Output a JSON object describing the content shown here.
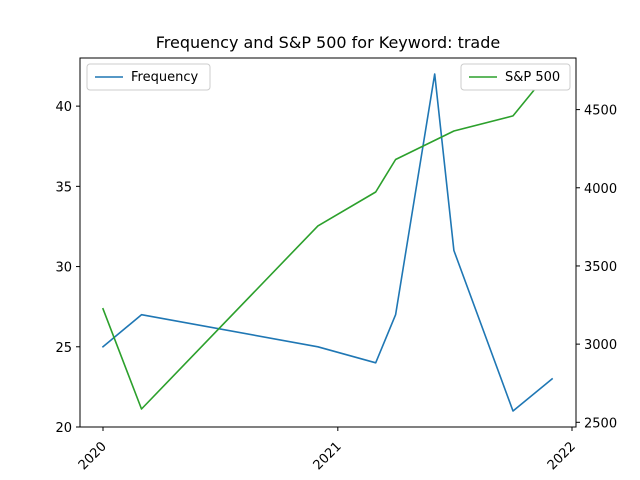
{
  "chart_data": {
    "type": "line",
    "title": "Frequency and S&P 500 for Keyword: trade",
    "xlabel": "",
    "x_ticks": [
      "2020",
      "2021",
      "2022"
    ],
    "x_range": [
      "2020-01-01",
      "2022-01-01"
    ],
    "series": [
      {
        "name": "Frequency",
        "axis": "left",
        "color": "#1f77b4",
        "x": [
          "2020-01-01",
          "2020-03-01",
          "2020-12-01",
          "2021-03-01",
          "2021-04-01",
          "2021-06-01",
          "2021-07-01",
          "2021-10-01",
          "2021-12-01"
        ],
        "values": [
          25,
          27,
          25,
          24,
          27,
          42,
          31,
          21,
          23
        ]
      },
      {
        "name": "S&P 500",
        "axis": "right",
        "color": "#2ca02c",
        "x": [
          "2020-01-01",
          "2020-03-01",
          "2020-12-01",
          "2021-03-01",
          "2021-04-01",
          "2021-07-01",
          "2021-10-01",
          "2021-12-01"
        ],
        "values": [
          3226,
          2585,
          3756,
          3973,
          4181,
          4363,
          4460,
          4766
        ]
      }
    ],
    "y_left": {
      "label": "",
      "lim": [
        20,
        43
      ],
      "ticks": [
        20,
        25,
        30,
        35,
        40
      ]
    },
    "y_right": {
      "label": "",
      "lim": [
        2470,
        4830
      ],
      "ticks": [
        2500,
        3000,
        3500,
        4000,
        4500
      ]
    },
    "grid": false,
    "legends": {
      "left_series": "upper-left",
      "right_series": "upper-right"
    }
  }
}
